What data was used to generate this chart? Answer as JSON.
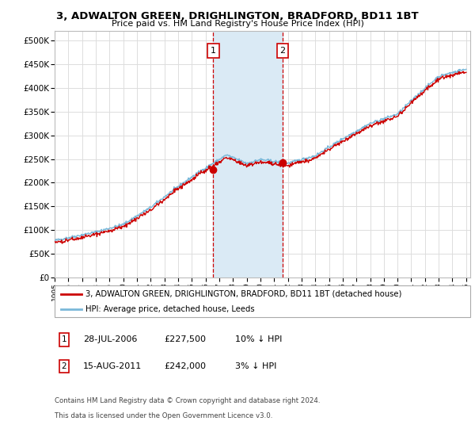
{
  "title": "3, ADWALTON GREEN, DRIGHLINGTON, BRADFORD, BD11 1BT",
  "subtitle": "Price paid vs. HM Land Registry's House Price Index (HPI)",
  "ylim": [
    0,
    520000
  ],
  "yticks": [
    0,
    50000,
    100000,
    150000,
    200000,
    250000,
    300000,
    350000,
    400000,
    450000,
    500000
  ],
  "ytick_labels": [
    "£0",
    "£50K",
    "£100K",
    "£150K",
    "£200K",
    "£250K",
    "£300K",
    "£350K",
    "£400K",
    "£450K",
    "£500K"
  ],
  "x_start_year": 1995,
  "x_end_year": 2025,
  "transaction1_date": 2006.57,
  "transaction1_price": 227500,
  "transaction1_label": "1",
  "transaction1_date_str": "28-JUL-2006",
  "transaction1_price_str": "£227,500",
  "transaction1_hpi_str": "10% ↓ HPI",
  "transaction2_date": 2011.62,
  "transaction2_price": 242000,
  "transaction2_label": "2",
  "transaction2_date_str": "15-AUG-2011",
  "transaction2_price_str": "£242,000",
  "transaction2_hpi_str": "3% ↓ HPI",
  "hpi_color": "#7ab8d9",
  "price_color": "#cc0000",
  "shade_color": "#daeaf5",
  "legend_line1": "3, ADWALTON GREEN, DRIGHLINGTON, BRADFORD, BD11 1BT (detached house)",
  "legend_line2": "HPI: Average price, detached house, Leeds",
  "footer_line1": "Contains HM Land Registry data © Crown copyright and database right 2024.",
  "footer_line2": "This data is licensed under the Open Government Licence v3.0.",
  "box_color": "#cc0000",
  "background_color": "#ffffff",
  "grid_color": "#dddddd"
}
